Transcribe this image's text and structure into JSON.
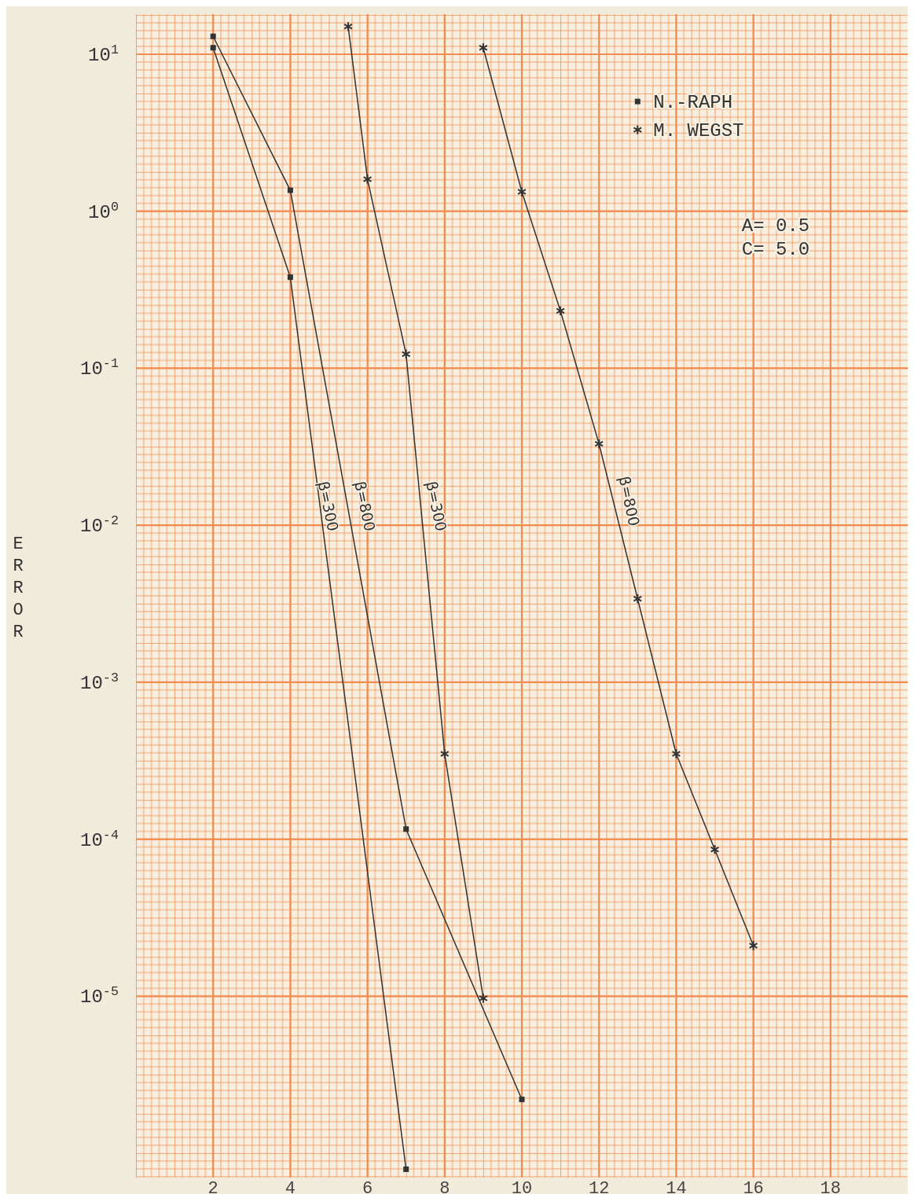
{
  "chart_data": {
    "type": "line",
    "ylabel": "ERROR",
    "log": "y",
    "grid": true,
    "legend": "top right",
    "line_style": "solid",
    "xlim": [
      0,
      20
    ],
    "xticks": [
      2,
      4,
      6,
      8,
      10,
      12,
      14,
      16,
      18
    ],
    "ylim": [
      7e-07,
      18
    ],
    "yticks": [
      {
        "value": 10,
        "label": "10$^{1}$"
      },
      {
        "value": 1,
        "label": "10$^{0}$"
      },
      {
        "value": 0.1,
        "label": "10$^{-1}$"
      },
      {
        "value": 0.01,
        "label": "10$^{-2}$"
      },
      {
        "value": 0.001,
        "label": "10$^{-3}$"
      },
      {
        "value": 0.0001,
        "label": "10$^{-4}$"
      },
      {
        "value": 1e-05,
        "label": "10$^{-5}$"
      }
    ],
    "series": [
      {
        "name": "N.-RAPH",
        "color": "#333333",
        "marker": "square",
        "x": [
          2,
          4,
          7
        ],
        "values": [
          11,
          0.38,
          7.9e-07
        ]
      },
      {
        "color": "#333333",
        "marker": "square",
        "x": [
          2,
          4,
          7,
          10
        ],
        "values": [
          13,
          1.36,
          0.000116,
          2.2e-06
        ]
      },
      {
        "name": "M. WEGST",
        "color": "#333333",
        "marker": "cross",
        "x": [
          5.5,
          6,
          7,
          8,
          9
        ],
        "values": [
          15,
          1.6,
          0.123,
          0.00035,
          9.7e-06
        ]
      },
      {
        "color": "#333333",
        "marker": "cross",
        "x": [
          9,
          10,
          11,
          12,
          13,
          14,
          15,
          16
        ],
        "values": [
          11,
          1.33,
          0.232,
          0.033,
          0.0034,
          0.00035,
          8.6e-05,
          2.1e-05
        ]
      }
    ],
    "annotations": [
      "A= 0.5",
      "C= 5.0",
      "β=300",
      "β=800",
      "β=300",
      "β=800"
    ]
  }
}
